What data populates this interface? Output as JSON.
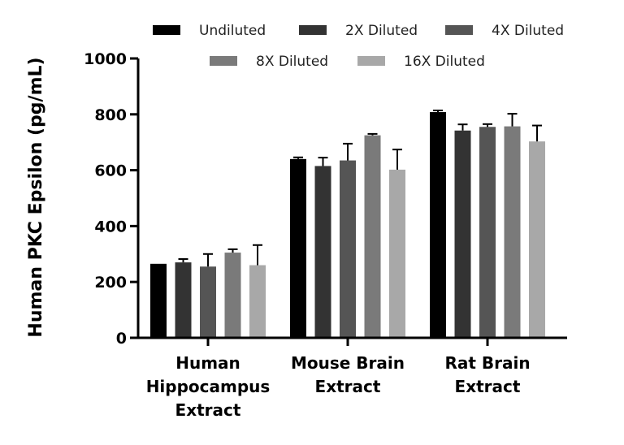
{
  "chart_data": {
    "type": "bar",
    "title": "",
    "xlabel": "",
    "ylabel": "Human PKC Epsilon (pg/mL)",
    "ylim": [
      0,
      1000
    ],
    "yticks": [
      "0",
      "200",
      "400",
      "600",
      "800",
      "1000"
    ],
    "grid": false,
    "legend_position": "top",
    "categories": [
      [
        "Human",
        "Hippocampus",
        "Extract"
      ],
      [
        "Mouse Brain",
        "Extract"
      ],
      [
        "Rat Brain",
        "Extract"
      ]
    ],
    "series": [
      {
        "name": "Undiluted",
        "color": "#000000",
        "values": [
          265,
          640,
          808
        ],
        "errors": [
          0,
          6,
          6
        ]
      },
      {
        "name": "2X Diluted",
        "color": "#333333",
        "values": [
          270,
          615,
          742
        ],
        "errors": [
          12,
          30,
          22
        ]
      },
      {
        "name": "4X Diluted",
        "color": "#555555",
        "values": [
          255,
          635,
          755
        ],
        "errors": [
          45,
          60,
          10
        ]
      },
      {
        "name": "8X Diluted",
        "color": "#7a7a7a",
        "values": [
          305,
          725,
          757
        ],
        "errors": [
          12,
          5,
          45
        ]
      },
      {
        "name": "16X Diluted",
        "color": "#a8a8a8",
        "values": [
          260,
          602,
          703
        ],
        "errors": [
          72,
          72,
          57
        ]
      }
    ]
  }
}
